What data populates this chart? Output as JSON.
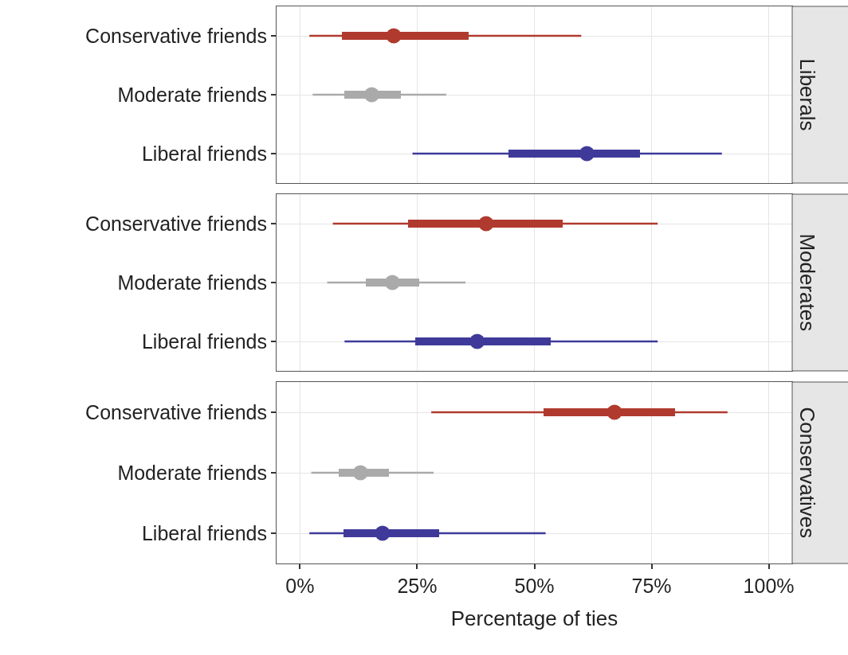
{
  "chart_data": [
    {
      "type": "bar",
      "title": "Liberals",
      "orientation": "horizontal",
      "categories": [
        "Conservative friends",
        "Moderate friends",
        "Liberal friends"
      ],
      "xlim": [
        -5,
        105
      ],
      "xticks": [
        {
          "value": 0,
          "label": null
        },
        {
          "value": 25,
          "label": null
        },
        {
          "value": 50,
          "label": null
        },
        {
          "value": 75,
          "label": null
        },
        {
          "value": 100,
          "label": null
        }
      ],
      "grid": true,
      "tick_labels": "y",
      "series": [
        {
          "type": "bar",
          "colors": [
            "#b03a2e",
            "#aaaaaa",
            "#3f3a99"
          ],
          "base": [
            9,
            9.5,
            44.5
          ],
          "values": [
            27,
            12,
            28
          ]
        },
        {
          "type": "scatter",
          "marker": "circle",
          "colors": [
            "#b03a2e",
            "#aaaaaa",
            "#3f3a99"
          ],
          "values": [
            20,
            15.3,
            61.2
          ],
          "errors": [
            [
              2,
              60
            ],
            [
              2.7,
              31.2
            ],
            [
              24,
              90
            ]
          ]
        }
      ]
    },
    {
      "type": "bar",
      "title": "Moderates",
      "orientation": "horizontal",
      "categories": [
        "Conservative friends",
        "Moderate friends",
        "Liberal friends"
      ],
      "xlim": [
        -5,
        105
      ],
      "xticks": [
        {
          "value": 0,
          "label": null
        },
        {
          "value": 25,
          "label": null
        },
        {
          "value": 50,
          "label": null
        },
        {
          "value": 75,
          "label": null
        },
        {
          "value": 100,
          "label": null
        }
      ],
      "grid": true,
      "tick_labels": "y",
      "series": [
        {
          "type": "bar",
          "colors": [
            "#b03a2e",
            "#aaaaaa",
            "#3f3a99"
          ],
          "base": [
            23,
            14,
            24.5
          ],
          "values": [
            33,
            11.5,
            29
          ]
        },
        {
          "type": "scatter",
          "marker": "circle",
          "colors": [
            "#b03a2e",
            "#aaaaaa",
            "#3f3a99"
          ],
          "values": [
            39.7,
            19.7,
            37.8
          ],
          "errors": [
            [
              7,
              76.3
            ],
            [
              5.8,
              35.3
            ],
            [
              9.5,
              76.3
            ]
          ]
        }
      ]
    },
    {
      "type": "bar",
      "title": "Conservatives",
      "orientation": "horizontal",
      "xlabel": "Percentage of ties",
      "categories": [
        "Conservative friends",
        "Moderate friends",
        "Liberal friends"
      ],
      "xlim": [
        -5,
        105
      ],
      "xticks": [
        {
          "value": 0,
          "label": "0%"
        },
        {
          "value": 25,
          "label": "25%"
        },
        {
          "value": 50,
          "label": "50%"
        },
        {
          "value": 75,
          "label": "75%"
        },
        {
          "value": 100,
          "label": "100%"
        }
      ],
      "grid": true,
      "series": [
        {
          "type": "bar",
          "colors": [
            "#b03a2e",
            "#aaaaaa",
            "#3f3a99"
          ],
          "base": [
            52,
            8.3,
            9.2
          ],
          "values": [
            28,
            10.7,
            20.5
          ]
        },
        {
          "type": "scatter",
          "marker": "circle",
          "colors": [
            "#b03a2e",
            "#aaaaaa",
            "#3f3a99"
          ],
          "values": [
            67.1,
            12.9,
            17.6
          ],
          "errors": [
            [
              28,
              91.2
            ],
            [
              2.4,
              28.5
            ],
            [
              2,
              52.4
            ]
          ]
        }
      ]
    }
  ]
}
